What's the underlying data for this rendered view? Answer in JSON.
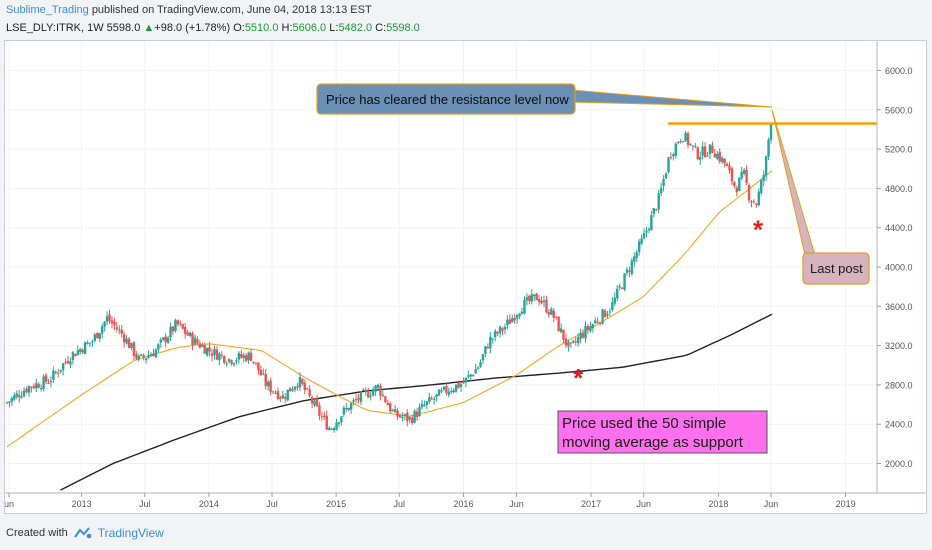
{
  "header": {
    "author": "Sublime_Trading",
    "published": "published on TradingView.com, June 04, 2018 13:13 EST",
    "symbol": "LSE_DLY:ITRK, 1W",
    "last": "5598.0",
    "change_arrow": "▲",
    "change": "+98.0 (+1.78%)",
    "o_label": "O:",
    "o": "5510.0",
    "h_label": "H:",
    "h": "5606.0",
    "l_label": "L:",
    "l": "5482.0",
    "c_label": "C:",
    "c": "5598.0"
  },
  "footer": {
    "created": "Created with",
    "brand": "TradingView",
    "brand_icon": "tradingview-logo-icon"
  },
  "colors": {
    "up": "#26a69a",
    "down": "#ef5350",
    "sma50": "#f5a623",
    "sma200": "#222222",
    "resistance": "#f5a000",
    "star": "#e31b1b",
    "price_label_bg": "#4caf50"
  },
  "annotations": {
    "resistance_text": "Price has cleared the resistance level now",
    "last_post_text": "Last post",
    "support_text_1": "Price used the 50 simple",
    "support_text_2": "moving average as support"
  },
  "chart_data": {
    "type": "candlestick",
    "ylim": [
      1700,
      6300
    ],
    "y_ticks": [
      2000,
      2400,
      2800,
      3200,
      3600,
      4000,
      4400,
      4800,
      5200,
      5600,
      6000
    ],
    "y_tick_labels": [
      "2000.0",
      "2400.0",
      "2800.0",
      "3200.0",
      "3600.0",
      "4000.0",
      "4400.0",
      "4800.0",
      "5200.0",
      "5600.0",
      "6000.0"
    ],
    "x_range": [
      "2012-06-01",
      "2019-04-01"
    ],
    "x_ticks": [
      {
        "date": "2012-06-01",
        "label": "un"
      },
      {
        "date": "2013-01-01",
        "label": "2013"
      },
      {
        "date": "2013-07-01",
        "label": "Jul"
      },
      {
        "date": "2014-01-01",
        "label": "2014"
      },
      {
        "date": "2014-07-01",
        "label": "Jul"
      },
      {
        "date": "2015-01-01",
        "label": "2015"
      },
      {
        "date": "2015-07-01",
        "label": "Jul"
      },
      {
        "date": "2016-01-01",
        "label": "2016"
      },
      {
        "date": "2016-06-01",
        "label": "Jun"
      },
      {
        "date": "2017-01-01",
        "label": "2017"
      },
      {
        "date": "2017-06-01",
        "label": "Jun"
      },
      {
        "date": "2018-01-01",
        "label": "2018"
      },
      {
        "date": "2018-06-01",
        "label": "Jun"
      },
      {
        "date": "2019-01-01",
        "label": "2019"
      }
    ],
    "price_anchors": [
      [
        "2012-06-01",
        2620
      ],
      [
        "2012-08-01",
        2780
      ],
      [
        "2012-10-01",
        2850
      ],
      [
        "2012-12-01",
        3100
      ],
      [
        "2013-02-01",
        3250
      ],
      [
        "2013-03-15",
        3480
      ],
      [
        "2013-05-01",
        3300
      ],
      [
        "2013-06-15",
        3050
      ],
      [
        "2013-08-01",
        3150
      ],
      [
        "2013-10-01",
        3420
      ],
      [
        "2013-11-15",
        3260
      ],
      [
        "2014-01-01",
        3150
      ],
      [
        "2014-03-01",
        3060
      ],
      [
        "2014-05-01",
        3100
      ],
      [
        "2014-06-15",
        2800
      ],
      [
        "2014-08-01",
        2680
      ],
      [
        "2014-09-15",
        2850
      ],
      [
        "2014-11-15",
        2500
      ],
      [
        "2014-12-15",
        2350
      ],
      [
        "2015-01-15",
        2500
      ],
      [
        "2015-03-01",
        2650
      ],
      [
        "2015-05-01",
        2780
      ],
      [
        "2015-06-15",
        2500
      ],
      [
        "2015-08-01",
        2450
      ],
      [
        "2015-09-15",
        2600
      ],
      [
        "2015-11-15",
        2750
      ],
      [
        "2016-01-01",
        2820
      ],
      [
        "2016-02-15",
        3000
      ],
      [
        "2016-03-15",
        3250
      ],
      [
        "2016-05-01",
        3400
      ],
      [
        "2016-06-15",
        3600
      ],
      [
        "2016-08-01",
        3700
      ],
      [
        "2016-09-15",
        3500
      ],
      [
        "2016-11-01",
        3150
      ],
      [
        "2016-12-01",
        3300
      ],
      [
        "2017-01-15",
        3450
      ],
      [
        "2017-03-01",
        3600
      ],
      [
        "2017-04-15",
        3950
      ],
      [
        "2017-06-01",
        4300
      ],
      [
        "2017-07-15",
        4700
      ],
      [
        "2017-08-15",
        5150
      ],
      [
        "2017-09-20",
        5350
      ],
      [
        "2017-11-01",
        5150
      ],
      [
        "2017-12-15",
        5200
      ],
      [
        "2018-01-20",
        5050
      ],
      [
        "2018-02-20",
        4800
      ],
      [
        "2018-03-15",
        4950
      ],
      [
        "2018-04-01",
        4700
      ],
      [
        "2018-04-20",
        4650
      ],
      [
        "2018-05-15",
        5000
      ],
      [
        "2018-06-04",
        5598
      ]
    ],
    "sma50_anchors": [
      [
        "2012-06-01",
        2170
      ],
      [
        "2013-01-01",
        2700
      ],
      [
        "2013-06-01",
        3050
      ],
      [
        "2013-10-01",
        3180
      ],
      [
        "2014-01-01",
        3220
      ],
      [
        "2014-06-01",
        3150
      ],
      [
        "2014-10-01",
        2880
      ],
      [
        "2015-01-01",
        2700
      ],
      [
        "2015-04-01",
        2540
      ],
      [
        "2015-08-01",
        2480
      ],
      [
        "2016-01-01",
        2620
      ],
      [
        "2016-06-01",
        2900
      ],
      [
        "2016-10-01",
        3200
      ],
      [
        "2017-02-01",
        3440
      ],
      [
        "2017-06-01",
        3700
      ],
      [
        "2017-10-01",
        4150
      ],
      [
        "2018-01-01",
        4550
      ],
      [
        "2018-04-01",
        4800
      ],
      [
        "2018-06-04",
        4980
      ]
    ],
    "sma200_anchors": [
      [
        "2012-11-01",
        1730
      ],
      [
        "2013-04-01",
        2000
      ],
      [
        "2013-10-01",
        2250
      ],
      [
        "2014-04-01",
        2480
      ],
      [
        "2014-10-01",
        2640
      ],
      [
        "2015-04-01",
        2740
      ],
      [
        "2015-10-01",
        2800
      ],
      [
        "2016-04-01",
        2870
      ],
      [
        "2016-10-01",
        2920
      ],
      [
        "2017-04-01",
        2980
      ],
      [
        "2017-10-01",
        3100
      ],
      [
        "2018-02-01",
        3300
      ],
      [
        "2018-06-04",
        3520
      ]
    ],
    "resistance_level": 5460,
    "resistance_start": "2017-08-10",
    "current_price": 5598.0,
    "stars": [
      {
        "date": "2016-11-25",
        "price": 2870
      },
      {
        "date": "2018-04-25",
        "price": 4380
      }
    ]
  }
}
